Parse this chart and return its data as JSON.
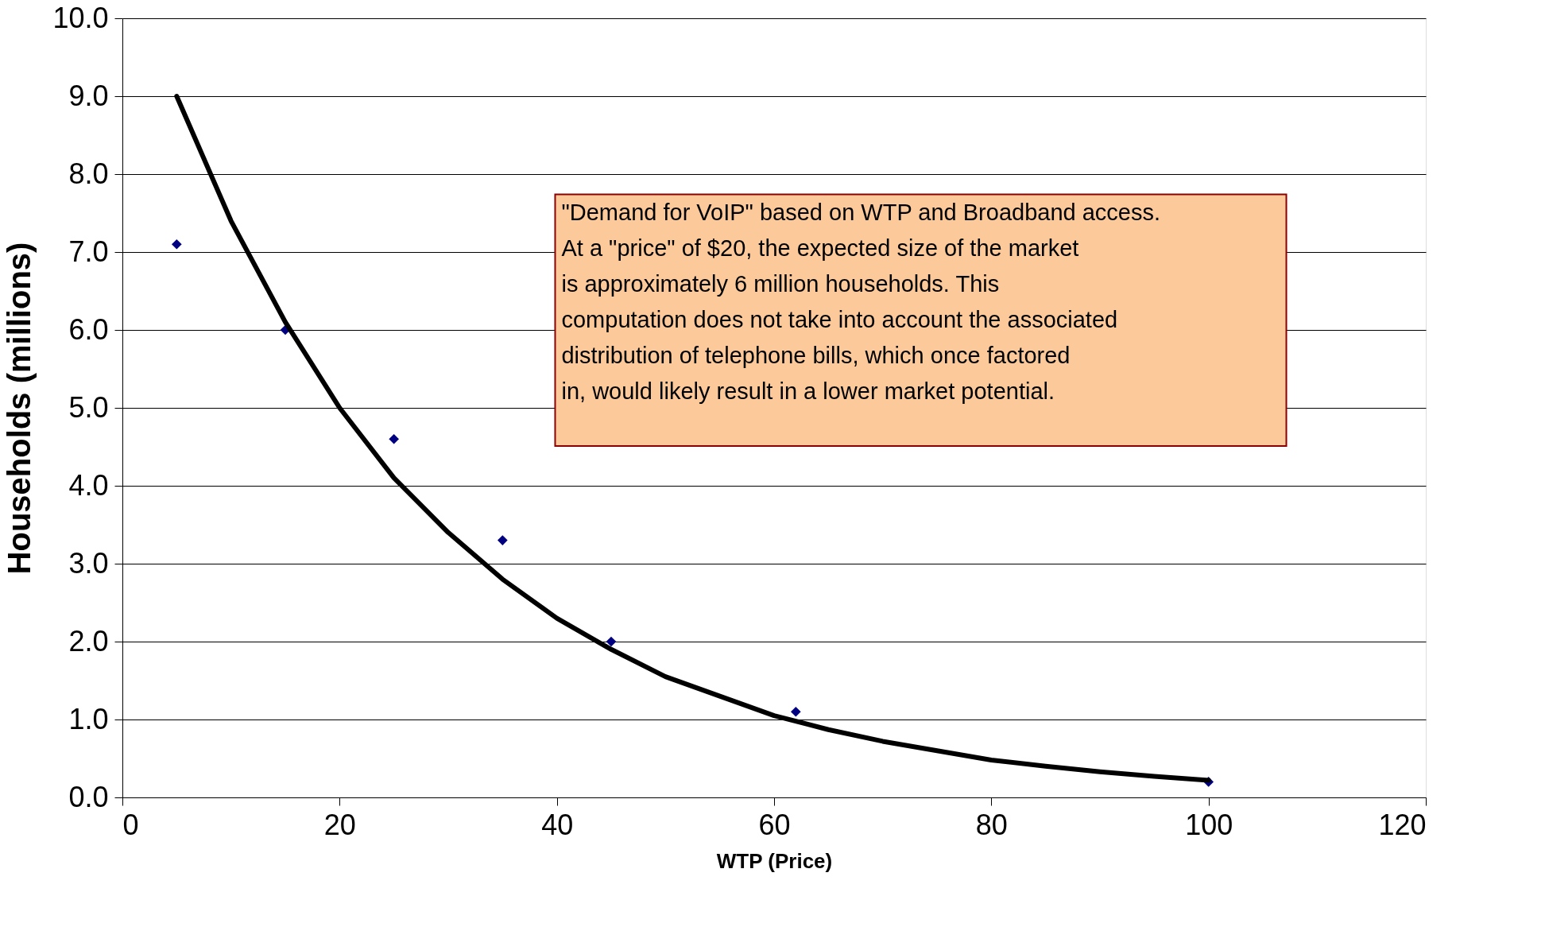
{
  "chart_data": {
    "type": "scatter",
    "xlabel": "WTP (Price)",
    "ylabel": "Households (millions)",
    "xlim": [
      0,
      120
    ],
    "xticks": [
      0,
      20,
      40,
      60,
      80,
      100,
      120
    ],
    "ylim": [
      0,
      10
    ],
    "yticks": [
      {
        "value": 0,
        "label": "0.0"
      },
      {
        "value": 1,
        "label": "1.0"
      },
      {
        "value": 2,
        "label": "2.0"
      },
      {
        "value": 3,
        "label": "3.0"
      },
      {
        "value": 4,
        "label": "4.0"
      },
      {
        "value": 5,
        "label": "5.0"
      },
      {
        "value": 6,
        "label": "6.0"
      },
      {
        "value": 7,
        "label": "7.0"
      },
      {
        "value": 8,
        "label": "8.0"
      },
      {
        "value": 9,
        "label": "9.0"
      },
      {
        "value": 10,
        "label": "10.0"
      }
    ],
    "grid": "y",
    "series": [
      {
        "type": "scatter",
        "color": "#000080",
        "marker": "diamond",
        "x": [
          5,
          15,
          25,
          35,
          45,
          62,
          100
        ],
        "values": [
          7.1,
          6.0,
          4.6,
          3.3,
          2.0,
          1.1,
          0.2
        ]
      },
      {
        "type": "line",
        "color": "#000000",
        "line_style": "solid",
        "marker": "none",
        "x": [
          5,
          10,
          15,
          20,
          25,
          30,
          35,
          40,
          45,
          50,
          55,
          60,
          65,
          70,
          75,
          80,
          85,
          90,
          95,
          100
        ],
        "values": [
          9.0,
          7.4,
          6.1,
          5.0,
          4.1,
          3.4,
          2.8,
          2.3,
          1.9,
          1.55,
          1.3,
          1.05,
          0.87,
          0.72,
          0.6,
          0.48,
          0.4,
          0.33,
          0.27,
          0.22
        ]
      }
    ],
    "annotations": [
      "\"Demand for VoIP\" based on WTP and Broadband access. At a \"price\" of $20, the expected size of the market is approximately 6 million households.  This computation does not take into account the associated distribution of telephone bills, which once factored in, would likely result in a lower market potential."
    ]
  }
}
